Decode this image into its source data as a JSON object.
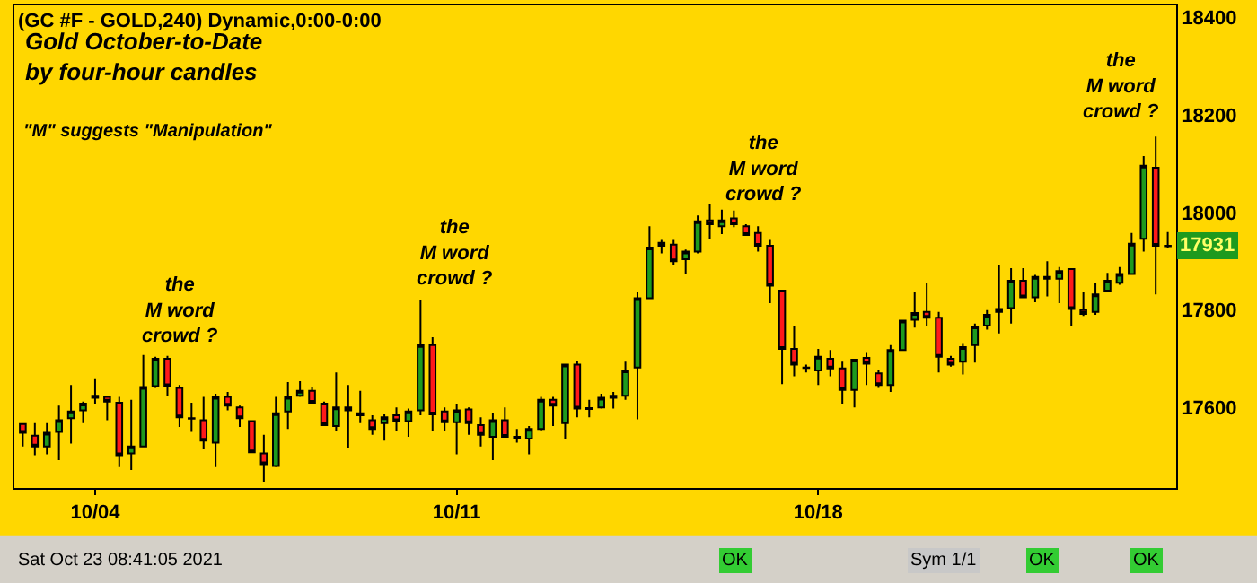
{
  "chart_data": {
    "type": "candlestick",
    "title": "Gold October-to-Date\nby four-hour candles",
    "subtitle": "\"M\" suggests \"Manipulation\"",
    "categories": [
      null,
      null,
      null,
      null,
      null,
      null,
      "10/04",
      null,
      null,
      null,
      null,
      null,
      null,
      null,
      null,
      null,
      null,
      null,
      null,
      null,
      null,
      null,
      null,
      null,
      null,
      null,
      null,
      null,
      null,
      null,
      null,
      null,
      null,
      null,
      null,
      null,
      "10/11",
      null,
      null,
      null,
      null,
      null,
      null,
      null,
      null,
      null,
      null,
      null,
      null,
      null,
      null,
      null,
      null,
      null,
      null,
      null,
      null,
      null,
      null,
      null,
      null,
      null,
      null,
      null,
      null,
      null,
      "10/18",
      null,
      null,
      null,
      null,
      null,
      null,
      null,
      null,
      null,
      null,
      null,
      null,
      null,
      null,
      null,
      null,
      null,
      null,
      null,
      null,
      null,
      null,
      null,
      null,
      null,
      null,
      null,
      null,
      null
    ],
    "ohlc": [
      [
        17566,
        17568,
        17520,
        17548
      ],
      [
        17542,
        17568,
        17502,
        17520
      ],
      [
        17520,
        17568,
        17504,
        17548
      ],
      [
        17550,
        17604,
        17492,
        17574
      ],
      [
        17578,
        17646,
        17526,
        17592
      ],
      [
        17594,
        17612,
        17568,
        17608
      ],
      [
        17620,
        17660,
        17608,
        17624
      ],
      [
        17622,
        17624,
        17574,
        17612
      ],
      [
        17610,
        17622,
        17478,
        17502
      ],
      [
        17506,
        17616,
        17472,
        17520
      ],
      [
        17520,
        17708,
        17520,
        17642
      ],
      [
        17644,
        17704,
        17640,
        17700
      ],
      [
        17700,
        17706,
        17624,
        17644
      ],
      [
        17640,
        17646,
        17560,
        17580
      ],
      [
        17578,
        17610,
        17550,
        17577
      ],
      [
        17574,
        17622,
        17514,
        17532
      ],
      [
        17528,
        17628,
        17478,
        17622
      ],
      [
        17622,
        17632,
        17594,
        17604
      ],
      [
        17600,
        17604,
        17560,
        17578
      ],
      [
        17572,
        17574,
        17508,
        17508
      ],
      [
        17506,
        17544,
        17448,
        17484
      ],
      [
        17480,
        17622,
        17478,
        17588
      ],
      [
        17592,
        17652,
        17556,
        17622
      ],
      [
        17624,
        17654,
        17622,
        17634
      ],
      [
        17634,
        17642,
        17610,
        17610
      ],
      [
        17608,
        17612,
        17562,
        17564
      ],
      [
        17562,
        17672,
        17552,
        17600
      ],
      [
        17600,
        17646,
        17516,
        17594
      ],
      [
        17588,
        17634,
        17568,
        17584
      ],
      [
        17574,
        17584,
        17544,
        17556
      ],
      [
        17568,
        17586,
        17532,
        17580
      ],
      [
        17584,
        17600,
        17552,
        17572
      ],
      [
        17572,
        17598,
        17540,
        17592
      ],
      [
        17594,
        17820,
        17584,
        17728
      ],
      [
        17728,
        17744,
        17552,
        17586
      ],
      [
        17592,
        17600,
        17552,
        17570
      ],
      [
        17570,
        17608,
        17504,
        17594
      ],
      [
        17596,
        17600,
        17544,
        17568
      ],
      [
        17564,
        17580,
        17520,
        17544
      ],
      [
        17540,
        17588,
        17492,
        17574
      ],
      [
        17574,
        17600,
        17538,
        17540
      ],
      [
        17536,
        17556,
        17528,
        17540
      ],
      [
        17536,
        17562,
        17504,
        17556
      ],
      [
        17556,
        17622,
        17552,
        17616
      ],
      [
        17616,
        17622,
        17562,
        17604
      ],
      [
        17568,
        17690,
        17536,
        17688
      ],
      [
        17688,
        17696,
        17580,
        17598
      ],
      [
        17599,
        17616,
        17580,
        17597
      ],
      [
        17600,
        17628,
        17598,
        17620
      ],
      [
        17620,
        17632,
        17598,
        17624
      ],
      [
        17624,
        17694,
        17616,
        17676
      ],
      [
        17682,
        17836,
        17576,
        17824
      ],
      [
        17824,
        17972,
        17824,
        17928
      ],
      [
        17932,
        17944,
        17916,
        17938
      ],
      [
        17934,
        17944,
        17892,
        17900
      ],
      [
        17904,
        17924,
        17874,
        17920
      ],
      [
        17920,
        17994,
        17916,
        17982
      ],
      [
        17984,
        18018,
        17946,
        17976
      ],
      [
        17972,
        18006,
        17956,
        17984
      ],
      [
        17988,
        18004,
        17970,
        17976
      ],
      [
        17972,
        17976,
        17952,
        17954
      ],
      [
        17958,
        17972,
        17920,
        17932
      ],
      [
        17932,
        17944,
        17814,
        17850
      ],
      [
        17840,
        17840,
        17648,
        17720
      ],
      [
        17720,
        17768,
        17664,
        17688
      ],
      [
        17681,
        17688,
        17672,
        17682
      ],
      [
        17676,
        17720,
        17646,
        17704
      ],
      [
        17700,
        17718,
        17664,
        17680
      ],
      [
        17680,
        17694,
        17608,
        17636
      ],
      [
        17636,
        17700,
        17600,
        17698
      ],
      [
        17702,
        17712,
        17646,
        17690
      ],
      [
        17670,
        17676,
        17640,
        17646
      ],
      [
        17646,
        17728,
        17632,
        17718
      ],
      [
        17718,
        17780,
        17716,
        17778
      ],
      [
        17780,
        17838,
        17764,
        17794
      ],
      [
        17796,
        17856,
        17766,
        17784
      ],
      [
        17784,
        17796,
        17672,
        17704
      ],
      [
        17700,
        17706,
        17684,
        17688
      ],
      [
        17694,
        17732,
        17668,
        17724
      ],
      [
        17728,
        17772,
        17692,
        17766
      ],
      [
        17768,
        17800,
        17760,
        17790
      ],
      [
        17796,
        17892,
        17752,
        17802
      ],
      [
        17804,
        17886,
        17772,
        17860
      ],
      [
        17860,
        17886,
        17824,
        17826
      ],
      [
        17826,
        17872,
        17816,
        17868
      ],
      [
        17864,
        17900,
        17828,
        17868
      ],
      [
        17864,
        17888,
        17814,
        17880
      ],
      [
        17884,
        17886,
        17766,
        17802
      ],
      [
        17800,
        17838,
        17788,
        17792
      ],
      [
        17796,
        17856,
        17790,
        17832
      ],
      [
        17840,
        17876,
        17836,
        17860
      ],
      [
        17856,
        17888,
        17852,
        17874
      ],
      [
        17874,
        17958,
        17872,
        17936
      ],
      [
        17946,
        18116,
        17920,
        18096
      ],
      [
        18092,
        18156,
        17832,
        17932
      ],
      [
        17932,
        17960,
        17928,
        17931
      ]
    ],
    "ylim": [
      17435,
      18425
    ],
    "yticks": [
      17600,
      17800,
      18000,
      18200,
      18400
    ],
    "grid": false,
    "annotations": [
      "(GC #F - GOLD,240) Dynamic,0:00-0:00",
      "the\nM word\ncrowd ?",
      "the\nM word\ncrowd ?",
      "the\nM word\ncrowd ?",
      "the\nM word\ncrowd ?",
      {
        "text": "17931",
        "y": 17931
      },
      "Sat Oct 23 08:41:05 2021",
      "OK",
      "Sym 1/1",
      "OK",
      "OK"
    ]
  }
}
